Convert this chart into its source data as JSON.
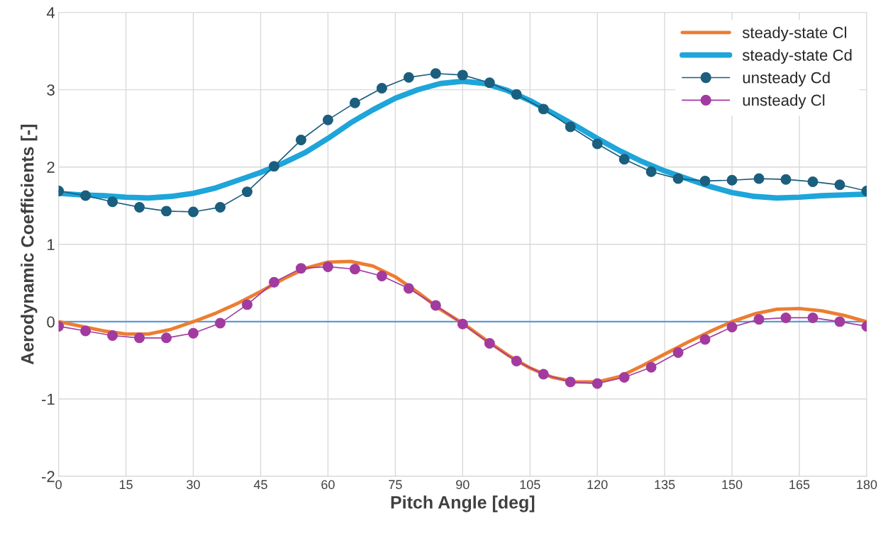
{
  "chart_data": {
    "type": "line",
    "xlabel": "Pitch Angle [deg]",
    "ylabel": "Aerodynamic Coefficients [-]",
    "xlim": [
      0,
      180
    ],
    "xticks": [
      0,
      15,
      30,
      45,
      60,
      75,
      90,
      105,
      120,
      135,
      150,
      165,
      180
    ],
    "ylim": [
      -2,
      4
    ],
    "yticks": [
      -2,
      -1,
      0,
      1,
      2,
      3,
      4
    ],
    "grid": true,
    "legend": "top right",
    "ref_lines": [
      {
        "axis": "y",
        "value": 0,
        "color": "#5b9bd5"
      }
    ],
    "series": [
      {
        "name": "steady-state Cl",
        "color": "#ed7d31",
        "marker": "none",
        "x": [
          0,
          5,
          10,
          15,
          20,
          25,
          30,
          35,
          40,
          45,
          50,
          55,
          60,
          65,
          70,
          75,
          80,
          85,
          90,
          95,
          100,
          105,
          110,
          115,
          120,
          125,
          130,
          135,
          140,
          145,
          150,
          155,
          160,
          165,
          170,
          175,
          180
        ],
        "values": [
          0,
          -0.06,
          -0.12,
          -0.16,
          -0.16,
          -0.1,
          0,
          0.11,
          0.24,
          0.39,
          0.55,
          0.69,
          0.77,
          0.78,
          0.72,
          0.58,
          0.38,
          0.16,
          -0.02,
          -0.23,
          -0.43,
          -0.6,
          -0.72,
          -0.78,
          -0.78,
          -0.71,
          -0.57,
          -0.42,
          -0.27,
          -0.13,
          0,
          0.1,
          0.16,
          0.17,
          0.14,
          0.08,
          0
        ]
      },
      {
        "name": "steady-state Cd",
        "color": "#1ea5d9",
        "marker": "none",
        "x": [
          0,
          5,
          10,
          15,
          20,
          25,
          30,
          35,
          40,
          45,
          50,
          55,
          60,
          65,
          70,
          75,
          80,
          85,
          90,
          95,
          100,
          105,
          110,
          115,
          120,
          125,
          130,
          135,
          140,
          145,
          150,
          155,
          160,
          165,
          170,
          175,
          180
        ],
        "values": [
          1.66,
          1.64,
          1.63,
          1.61,
          1.6,
          1.62,
          1.66,
          1.73,
          1.83,
          1.93,
          2.05,
          2.19,
          2.37,
          2.57,
          2.74,
          2.89,
          3.0,
          3.08,
          3.11,
          3.08,
          2.99,
          2.86,
          2.7,
          2.54,
          2.37,
          2.21,
          2.07,
          1.95,
          1.85,
          1.75,
          1.67,
          1.62,
          1.6,
          1.61,
          1.63,
          1.64,
          1.65
        ]
      },
      {
        "name": "unsteady Cd",
        "color": "#1b5e7e",
        "marker": "circle",
        "x": [
          0,
          6,
          12,
          18,
          24,
          30,
          36,
          42,
          48,
          54,
          60,
          66,
          72,
          78,
          84,
          90,
          96,
          102,
          108,
          114,
          120,
          126,
          132,
          138,
          144,
          150,
          156,
          162,
          168,
          174,
          180
        ],
        "values": [
          1.69,
          1.63,
          1.55,
          1.48,
          1.43,
          1.42,
          1.48,
          1.68,
          2.01,
          2.35,
          2.61,
          2.83,
          3.02,
          3.16,
          3.21,
          3.19,
          3.09,
          2.94,
          2.75,
          2.52,
          2.3,
          2.1,
          1.94,
          1.85,
          1.82,
          1.83,
          1.85,
          1.84,
          1.81,
          1.77,
          1.69
        ]
      },
      {
        "name": "unsteady Cl",
        "color": "#a23ba0",
        "marker": "circle",
        "x": [
          0,
          6,
          12,
          18,
          24,
          30,
          36,
          42,
          48,
          54,
          60,
          66,
          72,
          78,
          84,
          90,
          96,
          102,
          108,
          114,
          120,
          126,
          132,
          138,
          144,
          150,
          156,
          162,
          168,
          174,
          180
        ],
        "values": [
          -0.06,
          -0.12,
          -0.18,
          -0.21,
          -0.21,
          -0.15,
          -0.02,
          0.22,
          0.51,
          0.69,
          0.71,
          0.68,
          0.59,
          0.43,
          0.21,
          -0.03,
          -0.28,
          -0.51,
          -0.68,
          -0.78,
          -0.8,
          -0.72,
          -0.59,
          -0.4,
          -0.23,
          -0.07,
          0.03,
          0.05,
          0.05,
          0,
          -0.06
        ]
      }
    ]
  }
}
